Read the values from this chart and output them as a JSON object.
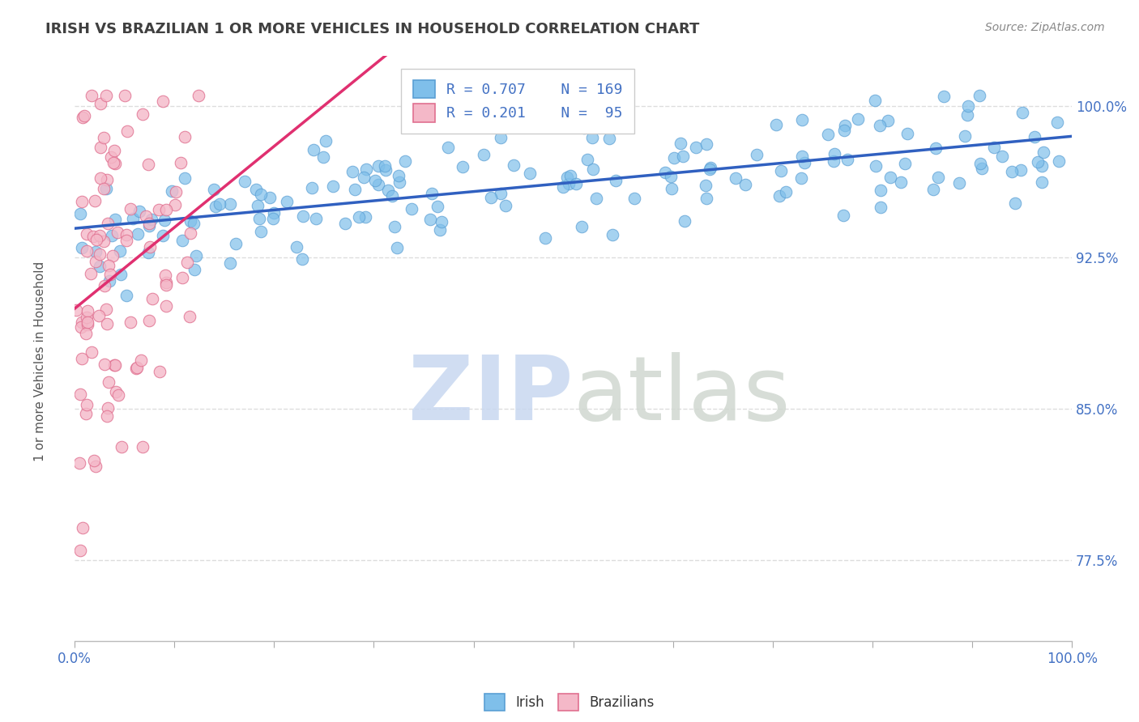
{
  "title": "IRISH VS BRAZILIAN 1 OR MORE VEHICLES IN HOUSEHOLD CORRELATION CHART",
  "source_text": "Source: ZipAtlas.com",
  "ylabel": "1 or more Vehicles in Household",
  "ylabel_ticks": [
    "77.5%",
    "85.0%",
    "92.5%",
    "100.0%"
  ],
  "ylabel_values": [
    0.775,
    0.85,
    0.925,
    1.0
  ],
  "xlim": [
    0.0,
    1.0
  ],
  "ylim": [
    0.735,
    1.025
  ],
  "irish_R": 0.707,
  "irish_N": 169,
  "brazilian_R": 0.201,
  "brazilian_N": 95,
  "irish_color": "#7fbfea",
  "irish_edge_color": "#5a9fd4",
  "brazilian_color": "#f4b8c8",
  "brazilian_edge_color": "#e07090",
  "trend_irish_color": "#3060c0",
  "trend_brazilian_color": "#e03070",
  "watermark_zip_color": "#c8d8f0",
  "watermark_atlas_color": "#d0d8d0",
  "background_color": "#ffffff",
  "grid_color": "#dddddd",
  "title_color": "#404040",
  "axis_label_color": "#4472c4",
  "legend_color": "#4472c4",
  "irish_seed": 42,
  "brazilian_seed": 123
}
